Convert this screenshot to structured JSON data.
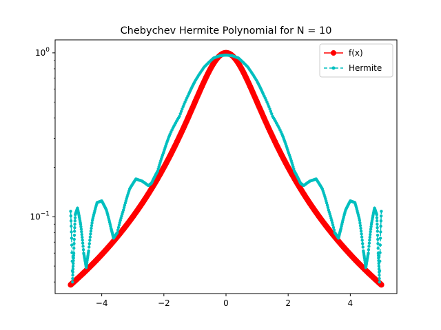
{
  "chart_data": {
    "type": "line",
    "title": "Chebychev Hermite Polynomial for N = 10",
    "xlabel": "",
    "ylabel": "",
    "xlim": [
      -5.5,
      5.5
    ],
    "ylim": [
      0.034,
      1.2
    ],
    "yscale": "log",
    "grid": false,
    "legend_position": "top-right",
    "x_ticks": [
      -4,
      -2,
      0,
      2,
      4
    ],
    "x_tick_labels": [
      "−4",
      "−2",
      "0",
      "2",
      "4"
    ],
    "y_ticks": [
      0.1,
      1
    ],
    "y_tick_labels": [
      {
        "base": "10",
        "exp": "−1"
      },
      {
        "base": "10",
        "exp": "0"
      }
    ],
    "x_range": [
      -5,
      5
    ],
    "series": [
      {
        "name": "f(x)",
        "color": "#ff0000",
        "style": "solid-with-circle-markers",
        "function": "1/(1+x^2)",
        "x": [
          -5,
          -4.5,
          -4,
          -3.5,
          -3,
          -2.5,
          -2,
          -1.5,
          -1,
          -0.5,
          0,
          0.5,
          1,
          1.5,
          2,
          2.5,
          3,
          3.5,
          4,
          4.5,
          5
        ],
        "y": [
          0.0385,
          0.0471,
          0.0588,
          0.0755,
          0.1,
          0.1379,
          0.2,
          0.3077,
          0.5,
          0.8,
          1.0,
          0.8,
          0.5,
          0.3077,
          0.2,
          0.1379,
          0.1,
          0.0755,
          0.0588,
          0.0471,
          0.0385
        ]
      },
      {
        "name": "Hermite",
        "color": "#00bfbf",
        "style": "dashed-with-point-markers",
        "x": [
          -5.0,
          -4.94,
          -4.9,
          -4.85,
          -4.78,
          -4.68,
          -4.58,
          -4.5,
          -4.42,
          -4.3,
          -4.15,
          -4.0,
          -3.85,
          -3.7,
          -3.62,
          -3.5,
          -3.3,
          -3.1,
          -2.9,
          -2.7,
          -2.5,
          -2.4,
          -2.2,
          -2.0,
          -1.8,
          -1.5,
          -1.2,
          -1.0,
          -0.7,
          -0.4,
          -0.2,
          0.0,
          0.2,
          0.4,
          0.7,
          1.0,
          1.2,
          1.5,
          1.8,
          2.0,
          2.2,
          2.4,
          2.5,
          2.7,
          2.9,
          3.1,
          3.3,
          3.5,
          3.62,
          3.7,
          3.85,
          4.0,
          4.15,
          4.3,
          4.42,
          4.5,
          4.58,
          4.68,
          4.78,
          4.85,
          4.9,
          4.94,
          5.0
        ],
        "y": [
          0.108,
          0.04,
          0.06,
          0.103,
          0.113,
          0.09,
          0.06,
          0.049,
          0.062,
          0.095,
          0.122,
          0.125,
          0.11,
          0.085,
          0.074,
          0.08,
          0.11,
          0.148,
          0.17,
          0.165,
          0.155,
          0.16,
          0.19,
          0.25,
          0.32,
          0.41,
          0.56,
          0.67,
          0.82,
          0.93,
          0.96,
          0.97,
          0.96,
          0.93,
          0.82,
          0.67,
          0.56,
          0.41,
          0.32,
          0.25,
          0.19,
          0.16,
          0.155,
          0.165,
          0.17,
          0.148,
          0.11,
          0.08,
          0.074,
          0.085,
          0.11,
          0.125,
          0.122,
          0.095,
          0.062,
          0.049,
          0.06,
          0.09,
          0.113,
          0.103,
          0.06,
          0.04,
          0.108
        ]
      }
    ]
  }
}
